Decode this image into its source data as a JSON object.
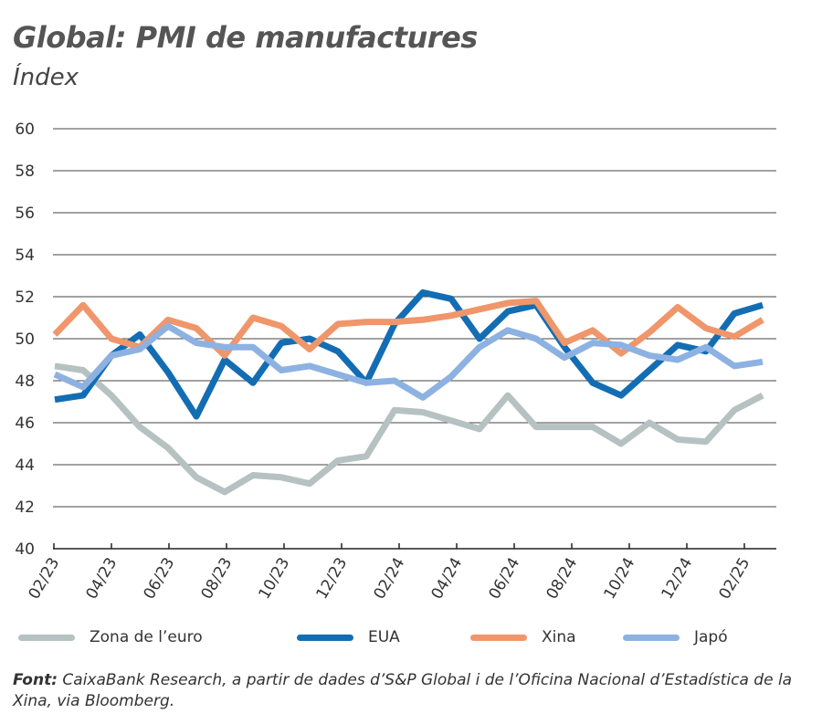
{
  "chart_data": {
    "type": "line",
    "title": "Global: PMI de manufactures",
    "subtitle": "Índex",
    "ylim": [
      40,
      60
    ],
    "yticks": [
      40,
      42,
      44,
      46,
      48,
      50,
      52,
      54,
      56,
      58,
      60
    ],
    "xtick_labels": [
      "02/23",
      "04/23",
      "06/23",
      "08/23",
      "10/23",
      "12/23",
      "02/24",
      "04/24",
      "06/24",
      "08/24",
      "10/24",
      "12/24",
      "02/25"
    ],
    "grid": true,
    "legend_position": "bottom",
    "series": [
      {
        "name": "Zona de l’euro",
        "color": "#b6c1c2",
        "values": [
          48.7,
          48.5,
          47.3,
          45.8,
          44.8,
          43.4,
          42.7,
          43.5,
          43.4,
          43.1,
          44.2,
          44.4,
          46.6,
          46.5,
          46.1,
          45.7,
          47.3,
          45.8,
          45.8,
          45.8,
          45.0,
          46.0,
          45.2,
          45.1,
          46.6,
          47.3
        ]
      },
      {
        "name": "EUA",
        "color": "#136db3",
        "values": [
          47.1,
          47.3,
          49.2,
          50.2,
          48.4,
          46.3,
          49.0,
          47.9,
          49.8,
          50.0,
          49.4,
          47.9,
          50.7,
          52.2,
          51.9,
          50.0,
          51.3,
          51.6,
          49.6,
          47.9,
          47.3,
          48.5,
          49.7,
          49.4,
          51.2,
          51.6
        ]
      },
      {
        "name": "Xina",
        "color": "#f0966b",
        "values": [
          50.2,
          51.6,
          50.0,
          49.6,
          50.9,
          50.5,
          49.2,
          51.0,
          50.6,
          49.5,
          50.7,
          50.8,
          50.8,
          50.9,
          51.1,
          51.4,
          51.7,
          51.8,
          49.8,
          50.4,
          49.3,
          50.3,
          51.5,
          50.5,
          50.1,
          50.9
        ]
      },
      {
        "name": "Japó",
        "color": "#8db2e1",
        "values": [
          48.3,
          47.7,
          49.2,
          49.5,
          50.6,
          49.8,
          49.6,
          49.6,
          48.5,
          48.7,
          48.3,
          47.9,
          48.0,
          47.2,
          48.2,
          49.6,
          50.4,
          50.0,
          49.1,
          49.8,
          49.7,
          49.2,
          49.0,
          49.6,
          48.7,
          48.9
        ]
      }
    ]
  },
  "source": {
    "label": "Font:",
    "text": " CaixaBank Research, a partir de dades d’S&P Global i de l’Oficina Nacional d’Estadística de la Xina, via Bloomberg."
  }
}
